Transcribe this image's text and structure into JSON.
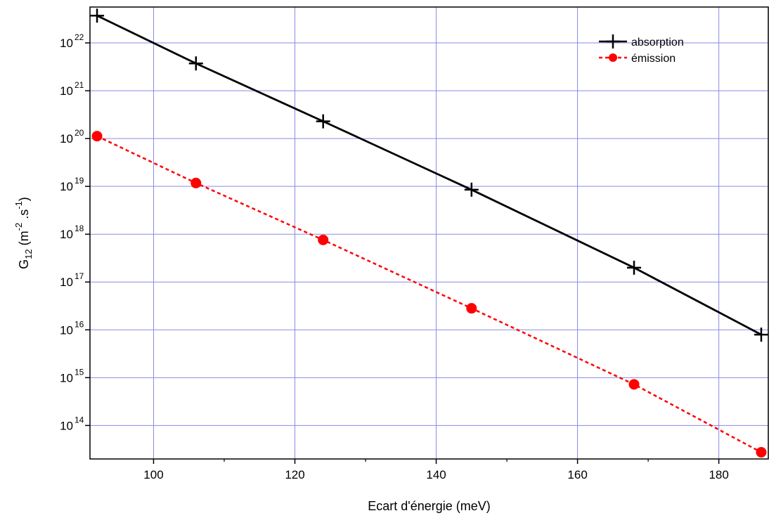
{
  "chart_data": {
    "type": "line",
    "xlabel": "Ecart d'énergie (meV)",
    "ylabel": {
      "base": "G",
      "sub": "12",
      "open": " (m",
      "exp1": "-2",
      "mid": " .s",
      "exp2": "-1",
      "close": ")"
    },
    "y_scale": "log",
    "xlim": [
      91,
      187
    ],
    "ylim_log10": [
      13.3,
      22.75
    ],
    "x_ticks": [
      100,
      120,
      140,
      160,
      180
    ],
    "y_tick_exponents": [
      14,
      15,
      16,
      17,
      18,
      19,
      20,
      21,
      22
    ],
    "y_tick_base": "10",
    "grid": true,
    "legend_position": "top-right",
    "series": [
      {
        "name": "absorption",
        "color": "#000000",
        "line_style": "solid",
        "marker": "plus",
        "x": [
          92,
          106,
          124,
          145,
          168,
          186
        ],
        "y_log10": [
          22.57,
          21.57,
          20.36,
          18.93,
          17.3,
          15.9
        ]
      },
      {
        "name": "émission",
        "color": "#ff0000",
        "line_style": "dashed",
        "marker": "circle",
        "x": [
          92,
          106,
          124,
          145,
          168,
          186
        ],
        "y_log10": [
          20.05,
          19.07,
          17.88,
          16.45,
          14.86,
          13.44
        ]
      }
    ]
  }
}
